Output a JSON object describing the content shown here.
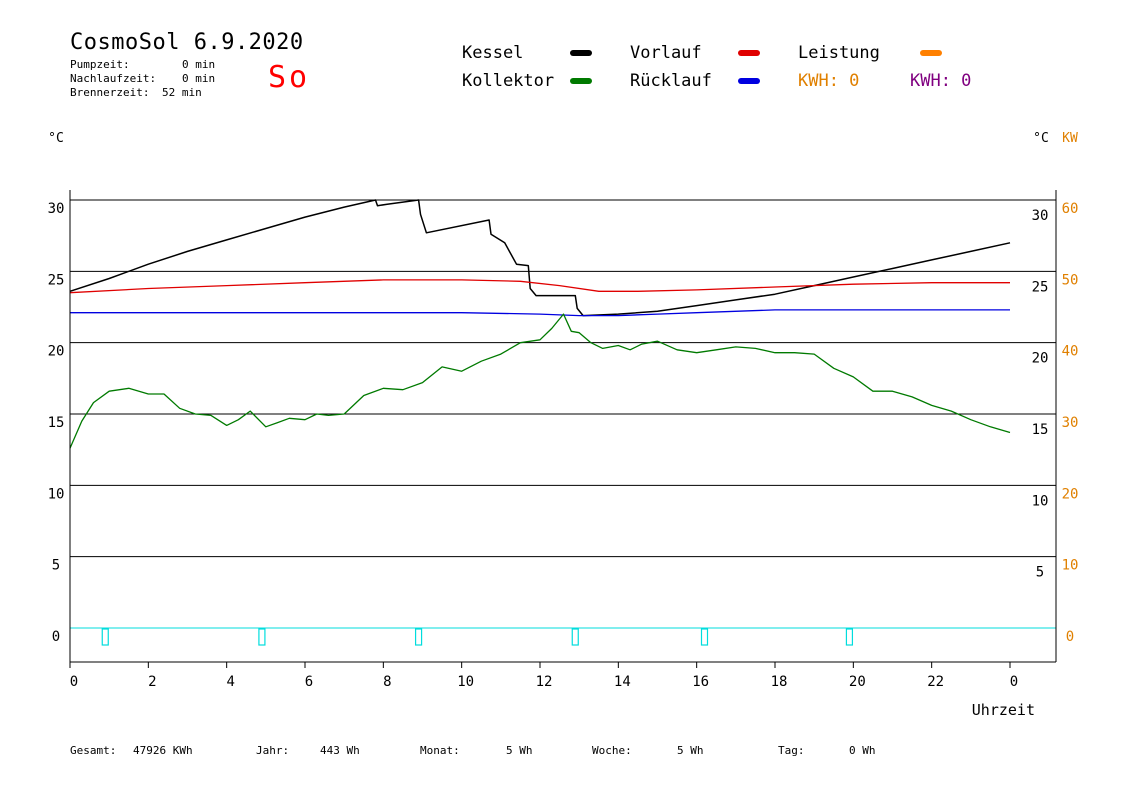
{
  "header": {
    "title": "CosmoSol 6.9.2020",
    "day": "So",
    "info": [
      {
        "label": "Pumpzeit:",
        "value": "0 min"
      },
      {
        "label": "Nachlaufzeit:",
        "value": "0 min"
      },
      {
        "label": "Brennerzeit:",
        "value": "52 min"
      }
    ]
  },
  "legend": {
    "kessel": "Kessel",
    "vorlauf": "Vorlauf",
    "leistung": "Leistung",
    "kollektor": "Kollektor",
    "ruecklauf": "Rücklauf",
    "kwh1": "KWH: 0",
    "kwh2": "KWH: 0"
  },
  "colors": {
    "kessel": "#000000",
    "vorlauf": "#e00000",
    "leistung": "#ff8000",
    "kollektor": "#007a00",
    "ruecklauf": "#0000e0",
    "kwh2": "#800080",
    "pump": "#00dddd"
  },
  "footer": {
    "gesamt_label": "Gesamt:",
    "gesamt_value": "47926 KWh",
    "jahr_label": "Jahr:",
    "jahr_value": "443 Wh",
    "monat_label": "Monat:",
    "monat_value": "5 Wh",
    "woche_label": "Woche:",
    "woche_value": "5 Wh",
    "tag_label": "Tag:",
    "tag_value": "0 Wh"
  },
  "chart_data": {
    "type": "line",
    "title": "CosmoSol 6.9.2020",
    "xlabel": "Uhrzeit",
    "left_unit": "°C",
    "right_unit": "°C",
    "right_unit2": "KW",
    "xlim": [
      0,
      24
    ],
    "ylim": [
      -2.5,
      31
    ],
    "x_ticks": [
      "0",
      "2",
      "4",
      "6",
      "8",
      "10",
      "12",
      "14",
      "16",
      "18",
      "20",
      "22",
      "0"
    ],
    "y_ticks_left": [
      0,
      5,
      10,
      15,
      20,
      25,
      30
    ],
    "y_ticks_right_temp": [
      5,
      10,
      15,
      20,
      25,
      30
    ],
    "y_ticks_right_kw": [
      0,
      10,
      20,
      30,
      40,
      50,
      60
    ],
    "grid": "horizontal",
    "series": [
      {
        "name": "Kessel",
        "key": "kessel",
        "x": [
          0,
          1,
          2,
          3,
          4,
          5,
          6,
          7,
          7.8,
          7.85,
          8.1,
          8.9,
          8.95,
          9.1,
          10.7,
          10.75,
          11.1,
          11.3,
          11.4,
          11.7,
          11.75,
          11.9,
          12.9,
          12.95,
          13.1,
          14,
          15,
          16,
          17,
          18,
          19,
          20,
          21,
          22,
          23,
          24
        ],
        "values": [
          23.6,
          24.5,
          25.5,
          26.4,
          27.2,
          28.0,
          28.8,
          29.5,
          30.0,
          29.6,
          29.7,
          30.0,
          29.0,
          27.7,
          28.6,
          27.6,
          27.0,
          26.0,
          25.5,
          25.4,
          23.8,
          23.3,
          23.3,
          22.4,
          21.9,
          22.0,
          22.2,
          22.6,
          23.0,
          23.4,
          24.0,
          24.6,
          25.2,
          25.8,
          26.4,
          27.0
        ]
      },
      {
        "name": "Vorlauf",
        "key": "vorlauf",
        "x": [
          0,
          2,
          4,
          6,
          8,
          10,
          11.5,
          12.5,
          13.5,
          14.5,
          16,
          18,
          20,
          22,
          24
        ],
        "values": [
          23.5,
          23.8,
          24.0,
          24.2,
          24.4,
          24.4,
          24.3,
          24.0,
          23.6,
          23.6,
          23.7,
          23.9,
          24.1,
          24.2,
          24.2
        ]
      },
      {
        "name": "Rücklauf",
        "key": "ruecklauf",
        "x": [
          0,
          4,
          8,
          10,
          12,
          13,
          14,
          15,
          16,
          18,
          20,
          22,
          24
        ],
        "values": [
          22.1,
          22.1,
          22.1,
          22.1,
          22.0,
          21.9,
          21.9,
          22.0,
          22.1,
          22.3,
          22.3,
          22.3,
          22.3
        ]
      },
      {
        "name": "Kollektor",
        "key": "kollektor",
        "x": [
          0,
          0.3,
          0.6,
          1,
          1.5,
          2,
          2.4,
          2.8,
          3.2,
          3.6,
          4,
          4.3,
          4.6,
          5,
          5.3,
          5.6,
          6,
          6.3,
          6.6,
          7,
          7.5,
          8,
          8.5,
          9,
          9.5,
          10,
          10.5,
          11,
          11.5,
          12,
          12.3,
          12.6,
          12.8,
          13,
          13.3,
          13.6,
          14,
          14.3,
          14.6,
          15,
          15.5,
          16,
          16.5,
          17,
          17.5,
          18,
          18.5,
          19,
          19.5,
          20,
          20.5,
          21,
          21.5,
          22,
          22.5,
          23,
          23.5,
          24
        ],
        "values": [
          12.6,
          14.5,
          15.8,
          16.6,
          16.8,
          16.4,
          16.4,
          15.4,
          15.0,
          14.9,
          14.2,
          14.6,
          15.2,
          14.1,
          14.4,
          14.7,
          14.6,
          15.0,
          14.9,
          15.0,
          16.3,
          16.8,
          16.7,
          17.2,
          18.3,
          18.0,
          18.7,
          19.2,
          20.0,
          20.2,
          21.0,
          22.0,
          20.8,
          20.7,
          20.0,
          19.6,
          19.8,
          19.5,
          19.9,
          20.1,
          19.5,
          19.3,
          19.5,
          19.7,
          19.6,
          19.3,
          19.3,
          19.2,
          18.2,
          17.6,
          16.6,
          16.6,
          16.2,
          15.6,
          15.2,
          14.6,
          14.1,
          13.7
        ]
      }
    ],
    "pump_markers_x": [
      0.9,
      4.9,
      8.9,
      12.9,
      16.2,
      19.9
    ]
  }
}
